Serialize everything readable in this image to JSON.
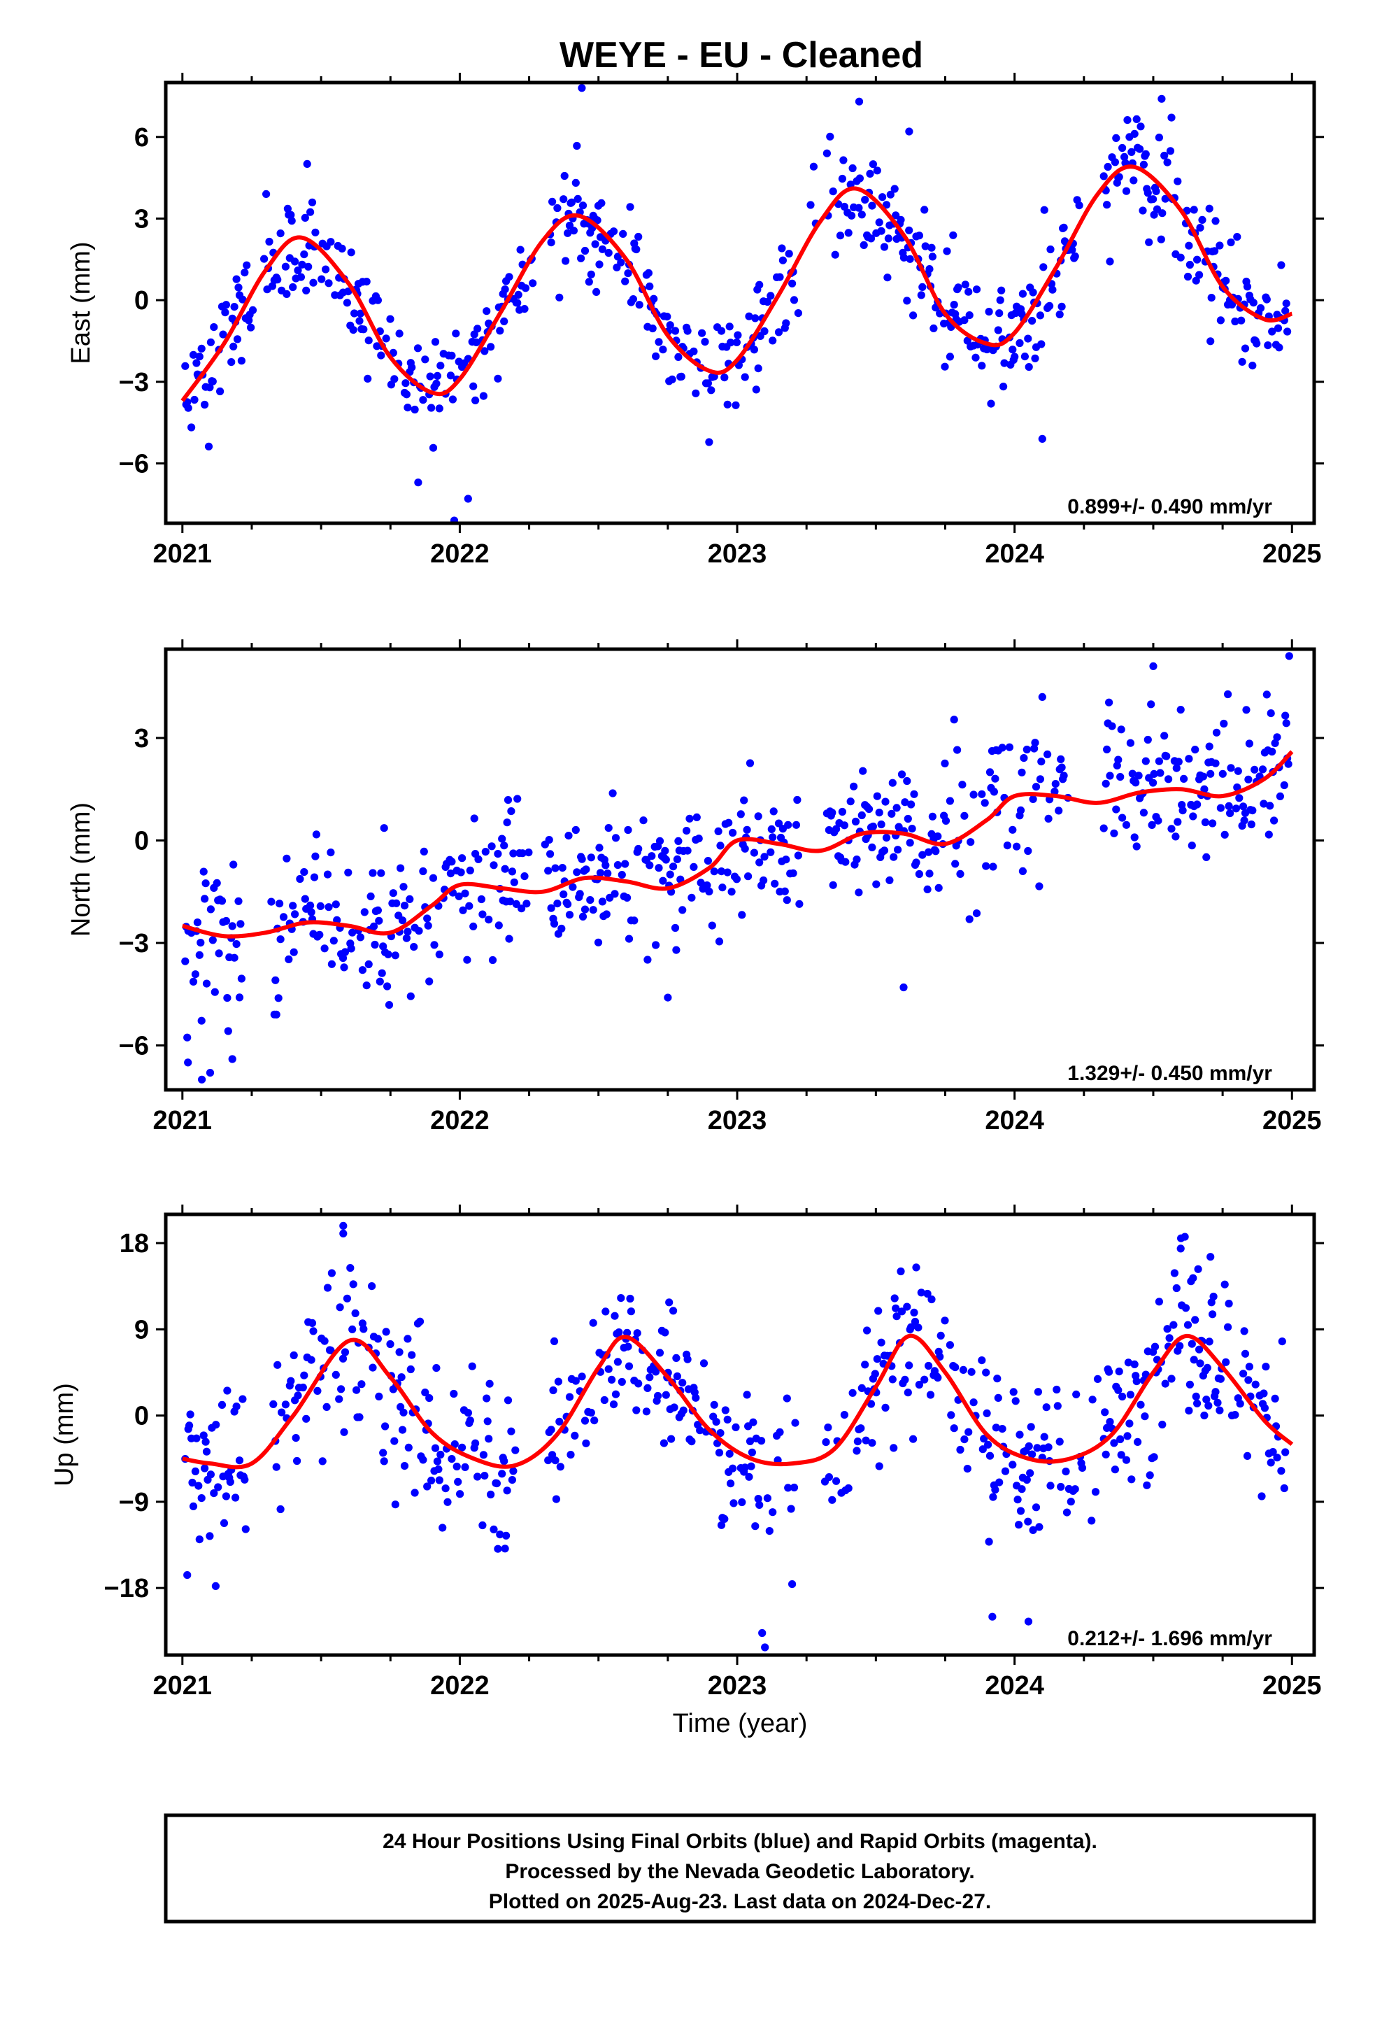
{
  "title": "WEYE  - EU - Cleaned",
  "x_axis_label": "Time (year)",
  "footer": {
    "line1": "24 Hour Positions Using Final Orbits (blue) and Rapid Orbits (magenta).",
    "line2": "Processed by the Nevada Geodetic Laboratory.",
    "line3": "Plotted on 2025-Aug-23. Last data on 2024-Dec-27."
  },
  "colors": {
    "points": "#0000ff",
    "fit": "#ff0000",
    "frame": "#000000"
  },
  "chart_data": [
    {
      "type": "scatter",
      "ylabel": "East (mm)",
      "rate_text": "0.899+/- 0.490 mm/yr",
      "xlim": [
        2020.94,
        2025.08
      ],
      "ylim": [
        -8.2,
        8.0
      ],
      "x_ticks": [
        2021,
        2022,
        2023,
        2024,
        2025
      ],
      "y_ticks": [
        6,
        3,
        0,
        -3,
        -6
      ],
      "y_tick_labels": [
        "6",
        "3",
        "0",
        "−3",
        "−6"
      ],
      "fit_model": {
        "offset": 0.0,
        "rate": 0.899,
        "amp": 3.5,
        "phase_peak": 0.43,
        "amp2": 0.3,
        "trend_end": 1.0,
        "start": -3.7
      },
      "fit": {
        "name": "fit",
        "x": [
          2021.0,
          2021.15,
          2021.3,
          2021.43,
          2021.6,
          2021.75,
          2021.9,
          2022.0,
          2022.15,
          2022.3,
          2022.43,
          2022.6,
          2022.75,
          2022.9,
          2023.0,
          2023.15,
          2023.3,
          2023.43,
          2023.6,
          2023.75,
          2023.9,
          2024.0,
          2024.15,
          2024.3,
          2024.43,
          2024.6,
          2024.75,
          2024.9,
          2025.0
        ],
        "y": [
          -3.7,
          -1.6,
          1.1,
          2.3,
          0.6,
          -2.1,
          -3.4,
          -2.9,
          -0.4,
          2.2,
          3.1,
          1.5,
          -1.3,
          -2.6,
          -2.2,
          0.2,
          2.9,
          4.1,
          2.4,
          -0.5,
          -1.6,
          -1.2,
          1.2,
          3.9,
          4.9,
          3.3,
          0.5,
          -0.7,
          -0.5
        ]
      },
      "points": {
        "name": "Final Orbits",
        "seed": 11,
        "noise": 1.0,
        "outliers": [
          [
            2021.98,
            -8.1
          ],
          [
            2022.03,
            -7.3
          ],
          [
            2021.85,
            -6.7
          ],
          [
            2022.44,
            7.8
          ],
          [
            2023.44,
            7.3
          ],
          [
            2024.53,
            7.4
          ],
          [
            2023.62,
            6.2
          ],
          [
            2024.1,
            -5.1
          ]
        ]
      }
    },
    {
      "type": "scatter",
      "ylabel": "North (mm)",
      "rate_text": "1.329+/- 0.450 mm/yr",
      "xlim": [
        2020.94,
        2025.08
      ],
      "ylim": [
        -7.3,
        5.6
      ],
      "x_ticks": [
        2021,
        2022,
        2023,
        2024,
        2025
      ],
      "y_ticks": [
        3,
        0,
        -3,
        -6
      ],
      "y_tick_labels": [
        "3",
        "0",
        "−3",
        "−6"
      ],
      "fit": {
        "name": "fit",
        "x": [
          2021.0,
          2021.15,
          2021.3,
          2021.45,
          2021.6,
          2021.75,
          2021.9,
          2022.0,
          2022.15,
          2022.3,
          2022.45,
          2022.6,
          2022.75,
          2022.9,
          2023.0,
          2023.15,
          2023.3,
          2023.45,
          2023.6,
          2023.75,
          2023.9,
          2024.0,
          2024.15,
          2024.3,
          2024.45,
          2024.6,
          2024.75,
          2024.9,
          2025.0
        ],
        "y": [
          -2.5,
          -2.8,
          -2.7,
          -2.4,
          -2.5,
          -2.7,
          -1.9,
          -1.3,
          -1.4,
          -1.5,
          -1.1,
          -1.2,
          -1.4,
          -0.8,
          0.0,
          -0.1,
          -0.3,
          0.2,
          0.2,
          -0.1,
          0.6,
          1.3,
          1.3,
          1.1,
          1.4,
          1.5,
          1.3,
          1.8,
          2.6
        ]
      },
      "points": {
        "name": "Final Orbits",
        "seed": 23,
        "noise": 1.1,
        "outliers": [
          [
            2021.07,
            -7.0
          ],
          [
            2021.02,
            -6.5
          ],
          [
            2021.1,
            -6.8
          ],
          [
            2021.18,
            -6.4
          ],
          [
            2024.99,
            5.4
          ],
          [
            2024.5,
            5.1
          ],
          [
            2023.6,
            -4.3
          ],
          [
            2022.75,
            -4.6
          ]
        ]
      }
    },
    {
      "type": "scatter",
      "ylabel": "Up (mm)",
      "rate_text": "0.212+/- 1.696 mm/yr",
      "xlim": [
        2020.94,
        2025.08
      ],
      "ylim": [
        -25.0,
        21.0
      ],
      "x_ticks": [
        2021,
        2022,
        2023,
        2024,
        2025
      ],
      "y_ticks": [
        18,
        9,
        0,
        -9,
        -18
      ],
      "y_tick_labels": [
        "18",
        "9",
        "0",
        "−9",
        "−18"
      ],
      "fit": {
        "name": "fit",
        "x": [
          2021.0,
          2021.1,
          2021.25,
          2021.4,
          2021.6,
          2021.75,
          2021.9,
          2022.05,
          2022.2,
          2022.35,
          2022.5,
          2022.6,
          2022.75,
          2022.9,
          2023.05,
          2023.2,
          2023.35,
          2023.5,
          2023.62,
          2023.75,
          2023.9,
          2024.05,
          2024.2,
          2024.35,
          2024.5,
          2024.62,
          2024.75,
          2024.9,
          2025.0
        ],
        "y": [
          -4.5,
          -5.0,
          -5.0,
          0.0,
          7.8,
          4.0,
          -1.8,
          -4.5,
          -5.2,
          -2.0,
          5.0,
          8.2,
          4.0,
          -1.5,
          -4.5,
          -5.0,
          -3.5,
          3.0,
          8.3,
          4.5,
          -2.0,
          -4.5,
          -4.5,
          -2.0,
          4.5,
          8.3,
          5.0,
          -0.5,
          -3.0
        ]
      },
      "points": {
        "name": "Final Orbits",
        "seed": 37,
        "noise": 4.3,
        "outliers": [
          [
            2021.58,
            19.8
          ],
          [
            2021.58,
            19.0
          ],
          [
            2023.1,
            -24.2
          ],
          [
            2023.09,
            -22.7
          ],
          [
            2024.05,
            -21.5
          ],
          [
            2023.92,
            -21.0
          ],
          [
            2024.6,
            18.5
          ],
          [
            2021.12,
            -17.8
          ]
        ]
      }
    }
  ]
}
